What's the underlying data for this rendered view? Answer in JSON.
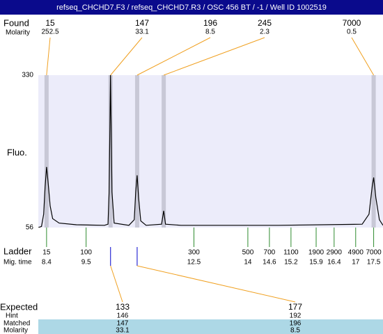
{
  "title": "refseq_CHCHD7.F3 / refseq_CHCHD7.R3 / OSC 456 BT / -1 / Well ID 1002519",
  "chart_data": {
    "type": "line",
    "y_label": "Fluo.",
    "color": "#000000",
    "x": [
      8.17,
      8.26,
      8.32,
      8.36,
      8.4,
      8.44,
      8.5,
      8.57,
      8.75,
      9.23,
      10.01,
      10.11,
      10.14,
      10.18,
      10.22,
      10.28,
      10.69,
      10.84,
      10.88,
      10.92,
      10.96,
      11.02,
      11.17,
      11.6,
      11.66,
      11.71,
      12.14,
      14.85,
      17.18,
      17.37,
      17.46,
      17.5,
      17.56,
      17.66,
      17.76
    ],
    "values": [
      56,
      58,
      80,
      130,
      165,
      140,
      95,
      72,
      64,
      61,
      60,
      62,
      120,
      330,
      120,
      64,
      60,
      70,
      120,
      150,
      110,
      68,
      60,
      62,
      86,
      62,
      60,
      60,
      62,
      80,
      130,
      146,
      110,
      70,
      60
    ],
    "xlim": [
      8.17,
      17.76
    ],
    "ylim": [
      56,
      330
    ],
    "yticks": [
      56,
      330
    ]
  },
  "found": {
    "label": "Found",
    "molarity_label": "Molarity",
    "sizes": [
      15,
      147,
      196,
      245,
      7000
    ],
    "molarity": [
      252.5,
      33.1,
      8.5,
      2.3,
      0.5
    ],
    "x": [
      8.4,
      10.18,
      10.92,
      11.66,
      17.5
    ]
  },
  "ladder": {
    "label": "Ladder",
    "time_label": "Mig. time",
    "sizes": [
      15,
      100,
      300,
      500,
      700,
      1100,
      1900,
      2900,
      4900,
      7000
    ],
    "times": [
      8.4,
      9.5,
      12.5,
      14,
      14.6,
      15.2,
      15.9,
      16.4,
      17,
      17.5
    ]
  },
  "expected": {
    "label": "Expected",
    "hint_label": "Hint",
    "matched_label": "Matched",
    "molarity_label": "Molarity",
    "sizes": [
      133,
      177
    ],
    "hint": [
      146,
      192
    ],
    "matched": [
      147,
      196
    ],
    "molarity": [
      33.1,
      8.5
    ],
    "x": [
      10.18,
      10.92
    ]
  }
}
